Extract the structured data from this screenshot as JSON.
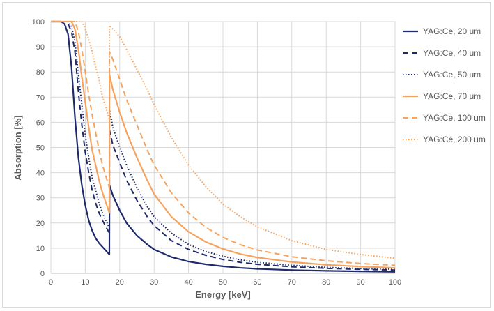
{
  "chart_data": {
    "type": "line",
    "title": "",
    "xlabel": "Energy [keV]",
    "ylabel": "Absorption [%]",
    "xlim": [
      0,
      100
    ],
    "ylim": [
      0,
      100
    ],
    "xticks": [
      0,
      10,
      20,
      30,
      40,
      50,
      60,
      70,
      80,
      90,
      100
    ],
    "yticks": [
      0,
      10,
      20,
      30,
      40,
      50,
      60,
      70,
      80,
      90,
      100
    ],
    "grid": true,
    "legend_position": "right",
    "series": [
      {
        "name": "YAG:Ce, 20 um",
        "color": "#1f2a6b",
        "dash": "solid",
        "points": [
          [
            0,
            100
          ],
          [
            3,
            100
          ],
          [
            4,
            99
          ],
          [
            5,
            95
          ],
          [
            6,
            82
          ],
          [
            7,
            62
          ],
          [
            8,
            46
          ],
          [
            9,
            35
          ],
          [
            10,
            27
          ],
          [
            11,
            21
          ],
          [
            12,
            17
          ],
          [
            13,
            14
          ],
          [
            14,
            12
          ],
          [
            15,
            10.5
          ],
          [
            16,
            9
          ],
          [
            17,
            7.5
          ],
          [
            17.04,
            35
          ],
          [
            18,
            31
          ],
          [
            20,
            25
          ],
          [
            22,
            20
          ],
          [
            25,
            15
          ],
          [
            28,
            11.5
          ],
          [
            30,
            9.5
          ],
          [
            35,
            6.5
          ],
          [
            40,
            4.7
          ],
          [
            45,
            3.6
          ],
          [
            50,
            2.8
          ],
          [
            55,
            2.2
          ],
          [
            60,
            1.8
          ],
          [
            70,
            1.3
          ],
          [
            80,
            1
          ],
          [
            90,
            0.8
          ],
          [
            100,
            0.6
          ]
        ]
      },
      {
        "name": "YAG:Ce, 40 um",
        "color": "#1f2a6b",
        "dash": "longdash",
        "points": [
          [
            0,
            100
          ],
          [
            4,
            100
          ],
          [
            5,
            99
          ],
          [
            6,
            96
          ],
          [
            7,
            88
          ],
          [
            8,
            72
          ],
          [
            9,
            59
          ],
          [
            10,
            48
          ],
          [
            11,
            40
          ],
          [
            12,
            33
          ],
          [
            13,
            28
          ],
          [
            14,
            24
          ],
          [
            15,
            21
          ],
          [
            16,
            18.5
          ],
          [
            17,
            16
          ],
          [
            17.04,
            57
          ],
          [
            18,
            51
          ],
          [
            20,
            44
          ],
          [
            22,
            37
          ],
          [
            25,
            29
          ],
          [
            28,
            22.5
          ],
          [
            30,
            19
          ],
          [
            35,
            13
          ],
          [
            40,
            9.5
          ],
          [
            45,
            7.2
          ],
          [
            50,
            5.5
          ],
          [
            55,
            4.4
          ],
          [
            60,
            3.6
          ],
          [
            70,
            2.6
          ],
          [
            80,
            2
          ],
          [
            90,
            1.6
          ],
          [
            100,
            1.3
          ]
        ]
      },
      {
        "name": "YAG:Ce, 50 um",
        "color": "#1f2a6b",
        "dash": "dotted",
        "points": [
          [
            0,
            100
          ],
          [
            5,
            100
          ],
          [
            6,
            98
          ],
          [
            7,
            92
          ],
          [
            8,
            79
          ],
          [
            9,
            67
          ],
          [
            10,
            55
          ],
          [
            11,
            46
          ],
          [
            12,
            38
          ],
          [
            13,
            33
          ],
          [
            14,
            28
          ],
          [
            15,
            24
          ],
          [
            16,
            21
          ],
          [
            17,
            18
          ],
          [
            17.04,
            65
          ],
          [
            18,
            58
          ],
          [
            20,
            50
          ],
          [
            22,
            43
          ],
          [
            25,
            34
          ],
          [
            28,
            26.5
          ],
          [
            30,
            22.5
          ],
          [
            35,
            16
          ],
          [
            40,
            11.5
          ],
          [
            45,
            8.7
          ],
          [
            50,
            6.8
          ],
          [
            55,
            5.4
          ],
          [
            60,
            4.4
          ],
          [
            70,
            3.2
          ],
          [
            80,
            2.4
          ],
          [
            90,
            1.9
          ],
          [
            100,
            1.6
          ]
        ]
      },
      {
        "name": "YAG:Ce, 70 um",
        "color": "#f4a460",
        "dash": "solid",
        "points": [
          [
            0,
            100
          ],
          [
            6,
            100
          ],
          [
            7,
            97
          ],
          [
            8,
            89
          ],
          [
            9,
            78
          ],
          [
            10,
            68
          ],
          [
            11,
            58
          ],
          [
            12,
            49
          ],
          [
            13,
            43
          ],
          [
            14,
            37
          ],
          [
            15,
            32
          ],
          [
            16,
            28
          ],
          [
            17,
            24
          ],
          [
            17.04,
            79
          ],
          [
            18,
            73
          ],
          [
            20,
            64
          ],
          [
            22,
            56
          ],
          [
            25,
            46
          ],
          [
            28,
            37
          ],
          [
            30,
            31.5
          ],
          [
            35,
            22.5
          ],
          [
            40,
            16.5
          ],
          [
            45,
            12.5
          ],
          [
            50,
            9.7
          ],
          [
            55,
            7.7
          ],
          [
            60,
            6.3
          ],
          [
            70,
            4.5
          ],
          [
            80,
            3.4
          ],
          [
            90,
            2.7
          ],
          [
            100,
            2.2
          ]
        ]
      },
      {
        "name": "YAG:Ce, 100 um",
        "color": "#f4a460",
        "dash": "longdash",
        "points": [
          [
            0,
            100
          ],
          [
            7,
            100
          ],
          [
            8,
            96
          ],
          [
            9,
            89
          ],
          [
            10,
            80
          ],
          [
            11,
            71
          ],
          [
            12,
            63
          ],
          [
            13,
            56
          ],
          [
            14,
            49
          ],
          [
            15,
            43
          ],
          [
            16,
            38.5
          ],
          [
            17,
            34
          ],
          [
            17.04,
            88
          ],
          [
            18,
            85
          ],
          [
            20,
            77
          ],
          [
            22,
            69
          ],
          [
            25,
            59
          ],
          [
            28,
            49
          ],
          [
            30,
            43
          ],
          [
            35,
            32
          ],
          [
            40,
            24
          ],
          [
            45,
            18.3
          ],
          [
            50,
            14.3
          ],
          [
            55,
            11.4
          ],
          [
            60,
            9.3
          ],
          [
            70,
            6.6
          ],
          [
            80,
            5
          ],
          [
            90,
            3.9
          ],
          [
            100,
            3.2
          ]
        ]
      },
      {
        "name": "YAG:Ce, 200 um",
        "color": "#f4a460",
        "dash": "dotted",
        "points": [
          [
            0,
            100
          ],
          [
            9,
            100
          ],
          [
            10,
            97
          ],
          [
            11,
            93
          ],
          [
            12,
            88
          ],
          [
            13,
            82
          ],
          [
            14,
            77
          ],
          [
            15,
            70
          ],
          [
            16,
            66
          ],
          [
            17,
            61
          ],
          [
            17.04,
            98.5
          ],
          [
            18,
            97
          ],
          [
            20,
            94
          ],
          [
            22,
            89
          ],
          [
            25,
            81
          ],
          [
            28,
            73
          ],
          [
            30,
            67
          ],
          [
            35,
            54
          ],
          [
            40,
            43
          ],
          [
            45,
            34.5
          ],
          [
            50,
            27.5
          ],
          [
            55,
            22.5
          ],
          [
            60,
            18.5
          ],
          [
            70,
            13
          ],
          [
            80,
            9.5
          ],
          [
            90,
            7.5
          ],
          [
            100,
            6
          ]
        ]
      }
    ]
  }
}
